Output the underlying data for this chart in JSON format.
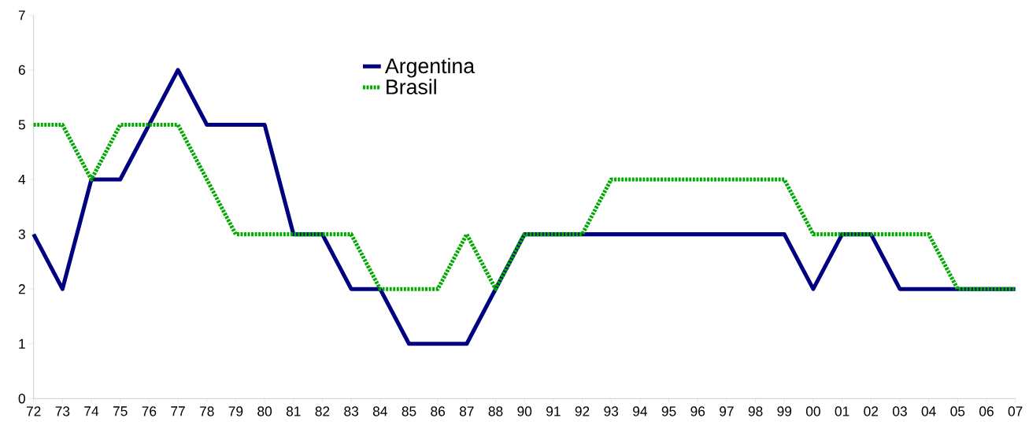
{
  "chart_data": {
    "type": "line",
    "categories": [
      "72",
      "73",
      "74",
      "75",
      "76",
      "77",
      "78",
      "79",
      "80",
      "81",
      "82",
      "83",
      "84",
      "85",
      "86",
      "87",
      "88",
      "90",
      "91",
      "92",
      "93",
      "94",
      "95",
      "96",
      "97",
      "98",
      "99",
      "00",
      "01",
      "02",
      "03",
      "04",
      "05",
      "06",
      "07"
    ],
    "series": [
      {
        "name": "Argentina",
        "color": "#000080",
        "line_style": "solid",
        "values": [
          3,
          2,
          4,
          4,
          5,
          6,
          5,
          5,
          5,
          3,
          3,
          2,
          2,
          1,
          1,
          1,
          2,
          3,
          3,
          3,
          3,
          3,
          3,
          3,
          3,
          3,
          3,
          2,
          3,
          3,
          2,
          2,
          2,
          2,
          2
        ]
      },
      {
        "name": "Brasil",
        "color": "#00aa00",
        "line_style": "dotted",
        "values": [
          5,
          5,
          4,
          5,
          5,
          5,
          4,
          3,
          3,
          3,
          3,
          3,
          2,
          2,
          2,
          3,
          2,
          3,
          3,
          3,
          4,
          4,
          4,
          4,
          4,
          4,
          4,
          3,
          3,
          3,
          3,
          3,
          2,
          2,
          2
        ]
      }
    ],
    "ylim": [
      0,
      7
    ],
    "yticks": [
      0,
      1,
      2,
      3,
      4,
      5,
      6,
      7
    ],
    "legend": "top"
  }
}
